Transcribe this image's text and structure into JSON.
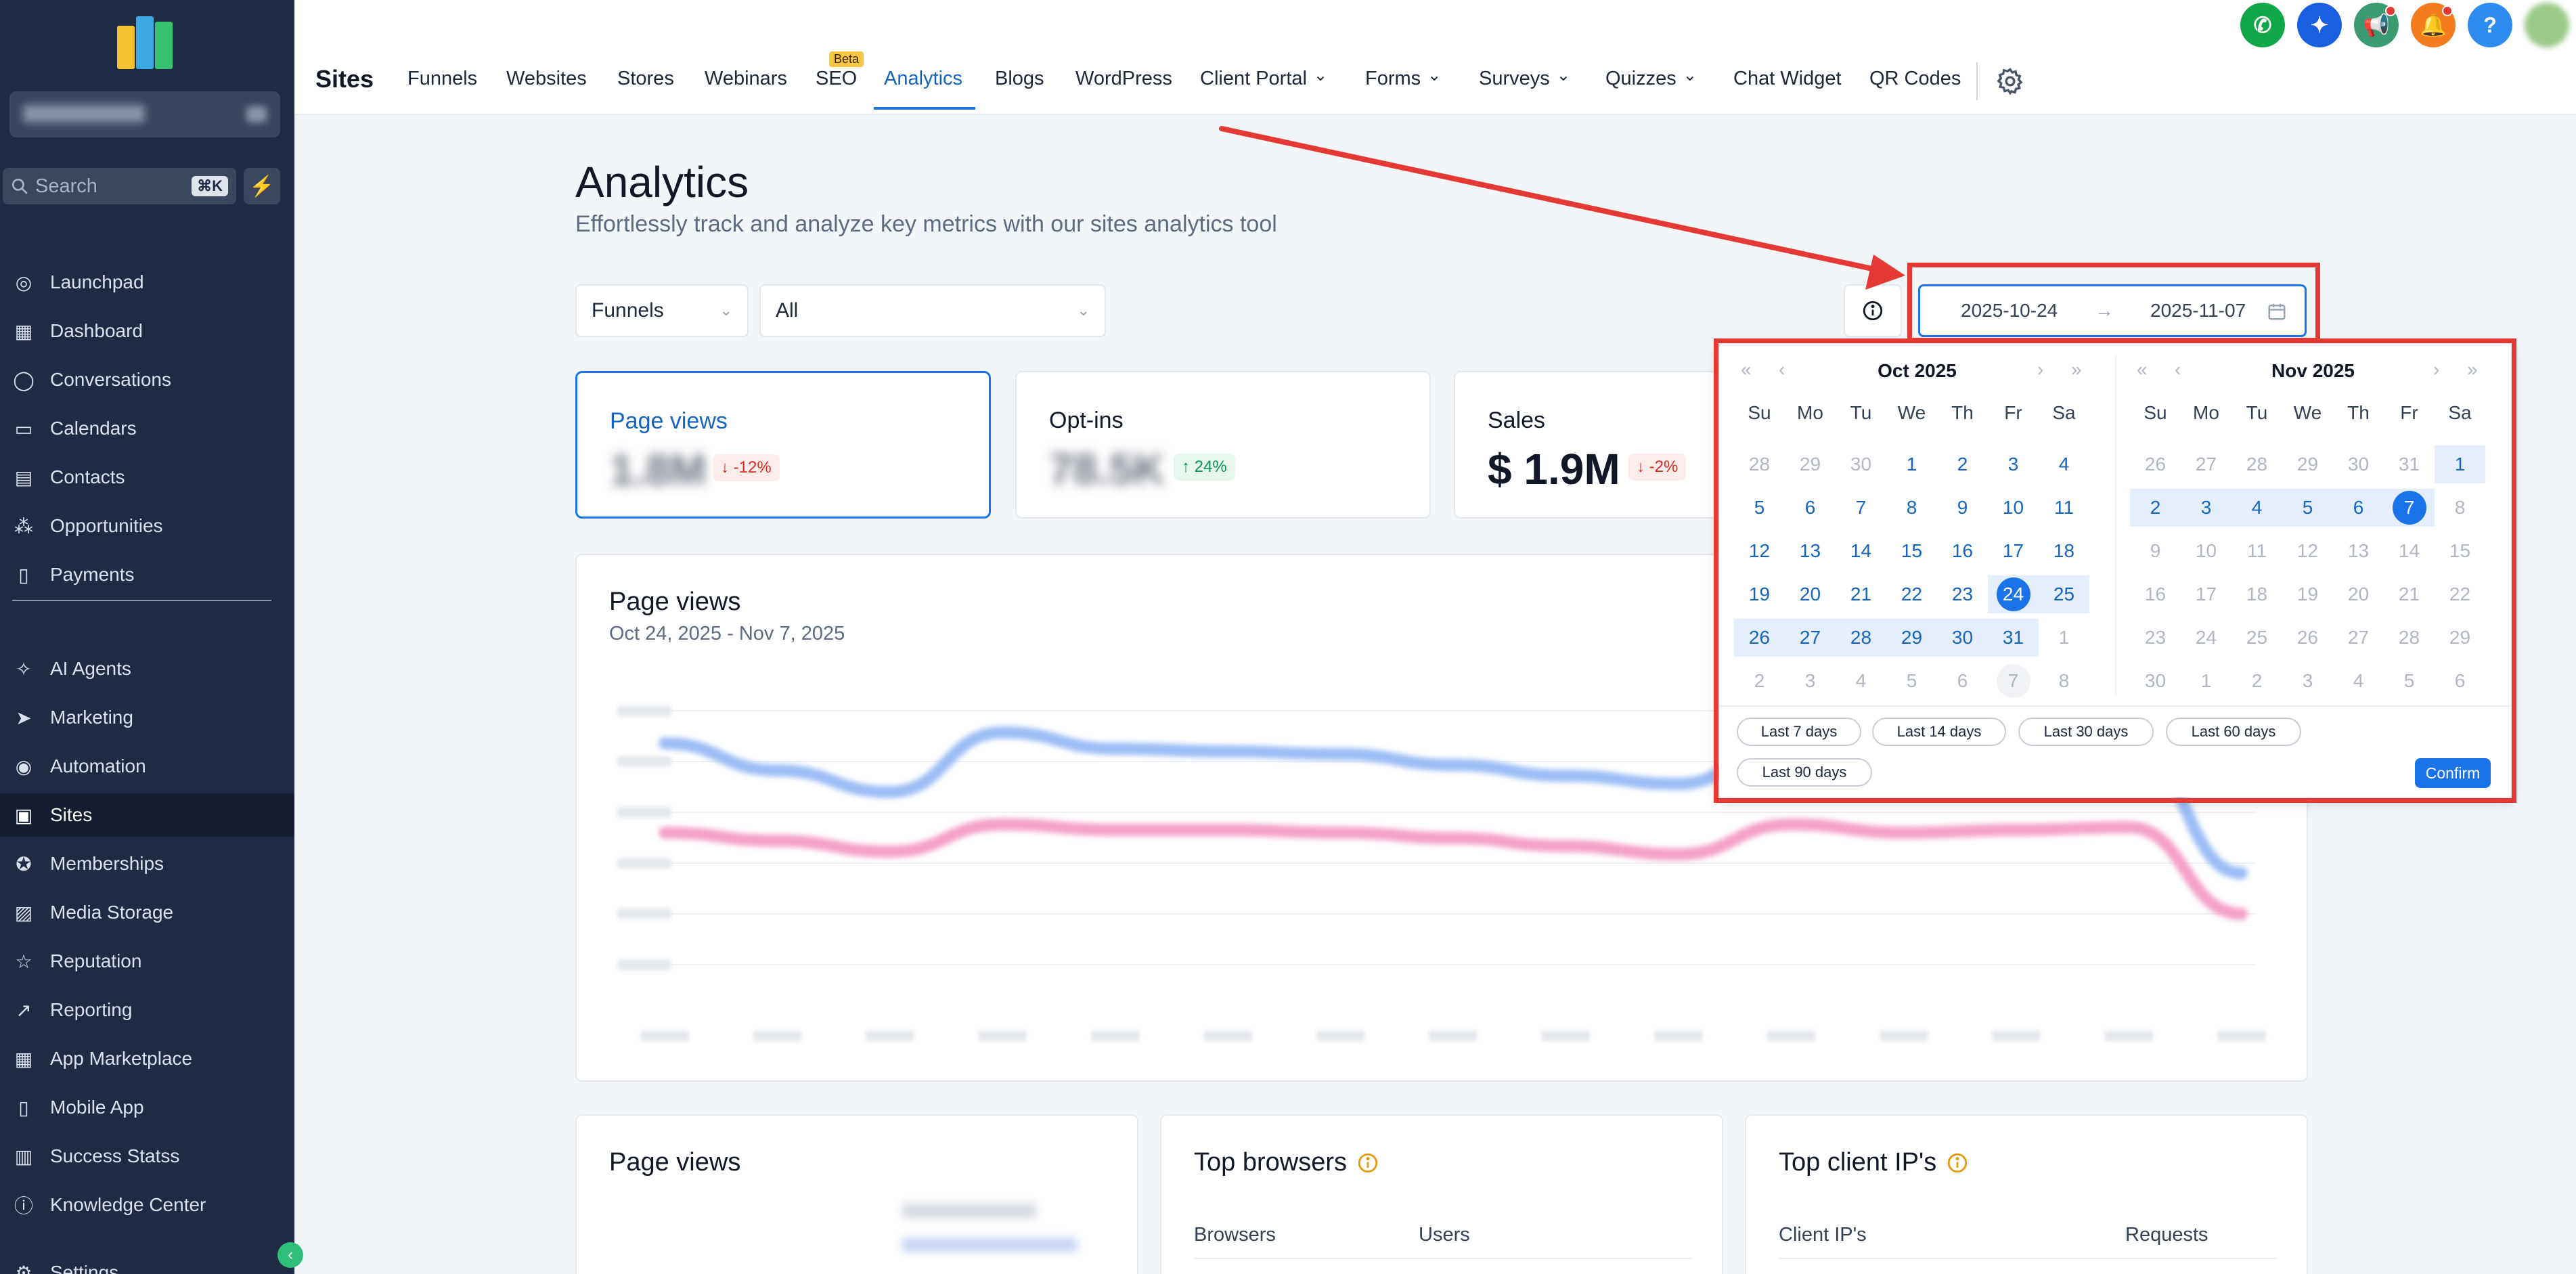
{
  "sidebar": {
    "search_placeholder": "Search",
    "search_shortcut": "⌘K",
    "items": [
      {
        "label": "Launchpad",
        "icon": "launchpad-icon"
      },
      {
        "label": "Dashboard",
        "icon": "dashboard-icon"
      },
      {
        "label": "Conversations",
        "icon": "chat-bubble-icon"
      },
      {
        "label": "Calendars",
        "icon": "calendar-icon"
      },
      {
        "label": "Contacts",
        "icon": "contacts-icon"
      },
      {
        "label": "Opportunities",
        "icon": "opportunities-icon"
      },
      {
        "label": "Payments",
        "icon": "receipt-icon"
      },
      {
        "label": "AI Agents",
        "icon": "sparkle-icon"
      },
      {
        "label": "Marketing",
        "icon": "send-icon"
      },
      {
        "label": "Automation",
        "icon": "automation-icon"
      },
      {
        "label": "Sites",
        "icon": "sites-icon"
      },
      {
        "label": "Memberships",
        "icon": "award-icon"
      },
      {
        "label": "Media Storage",
        "icon": "image-icon"
      },
      {
        "label": "Reputation",
        "icon": "star-icon"
      },
      {
        "label": "Reporting",
        "icon": "trend-icon"
      },
      {
        "label": "App Marketplace",
        "icon": "grid-icon"
      },
      {
        "label": "Mobile App",
        "icon": "phone-icon"
      },
      {
        "label": "Success Statss",
        "icon": "bar-chart-icon"
      },
      {
        "label": "Knowledge Center",
        "icon": "info-icon"
      },
      {
        "label": "Settings",
        "icon": "gear-icon"
      }
    ],
    "active": "Sites"
  },
  "topnav": {
    "brand": "Sites",
    "tabs": [
      "Funnels",
      "Websites",
      "Stores",
      "Webinars",
      "SEO",
      "Analytics",
      "Blogs",
      "WordPress",
      "Client Portal",
      "Forms",
      "Surveys",
      "Quizzes",
      "Chat Widget",
      "QR Codes"
    ],
    "beta_label": "Beta",
    "active_tab": "Analytics"
  },
  "colors": {
    "accent": "#1a73e8",
    "sidebar_bg": "#1f2a44",
    "annotation": "#e53935"
  },
  "page": {
    "title": "Analytics",
    "subtitle": "Effortlessly track and analyze key metrics with our sites analytics tool"
  },
  "filters": {
    "type": "Funnels",
    "scope": "All",
    "date_start": "2025-10-24",
    "date_end": "2025-11-07"
  },
  "metrics": [
    {
      "label": "Page views",
      "value": "1.8M",
      "change": "↓ -12%"
    },
    {
      "label": "Opt-ins",
      "value": "78.5K",
      "change": "↑ 24%"
    },
    {
      "label": "Sales",
      "value": "$ 1.9M",
      "change": "↓ -2%"
    }
  ],
  "chart": {
    "title": "Page views",
    "subtitle": "Oct 24, 2025 - Nov 7, 2025"
  },
  "chart_data": {
    "type": "line",
    "title": "Page views",
    "series": [
      {
        "values": [
          88,
          78,
          70,
          92,
          86,
          85,
          84,
          80,
          76,
          73,
          90,
          84,
          86,
          88,
          40
        ]
      },
      {
        "values": [
          55,
          52,
          48,
          58,
          56,
          56,
          55,
          53,
          50,
          47,
          58,
          55,
          56,
          57,
          25
        ]
      }
    ],
    "grid": true
  },
  "panels": {
    "pageviews_title": "Page views",
    "browsers_title": "Top browsers",
    "browsers_cols": [
      "Browsers",
      "Users"
    ],
    "ips_title": "Top client IP's",
    "ips_cols": [
      "Client IP's",
      "Requests"
    ]
  },
  "calendar": {
    "dow": [
      "Su",
      "Mo",
      "Tu",
      "We",
      "Th",
      "Fr",
      "Sa"
    ],
    "left_title": "Oct 2025",
    "right_title": "Nov 2025",
    "left_days": [
      [
        28,
        29,
        30,
        1,
        2,
        3,
        4
      ],
      [
        5,
        6,
        7,
        8,
        9,
        10,
        11
      ],
      [
        12,
        13,
        14,
        15,
        16,
        17,
        18
      ],
      [
        19,
        20,
        21,
        22,
        23,
        24,
        25
      ],
      [
        26,
        27,
        28,
        29,
        30,
        31,
        1
      ],
      [
        2,
        3,
        4,
        5,
        6,
        7,
        8
      ]
    ],
    "right_days": [
      [
        26,
        27,
        28,
        29,
        30,
        31,
        1
      ],
      [
        2,
        3,
        4,
        5,
        6,
        7,
        8
      ],
      [
        9,
        10,
        11,
        12,
        13,
        14,
        15
      ],
      [
        16,
        17,
        18,
        19,
        20,
        21,
        22
      ],
      [
        23,
        24,
        25,
        26,
        27,
        28,
        29
      ],
      [
        30,
        1,
        2,
        3,
        4,
        5,
        6
      ]
    ],
    "presets": [
      "Last 7 days",
      "Last 14 days",
      "Last 30 days",
      "Last 60 days",
      "Last 90 days"
    ],
    "confirm_label": "Confirm"
  }
}
